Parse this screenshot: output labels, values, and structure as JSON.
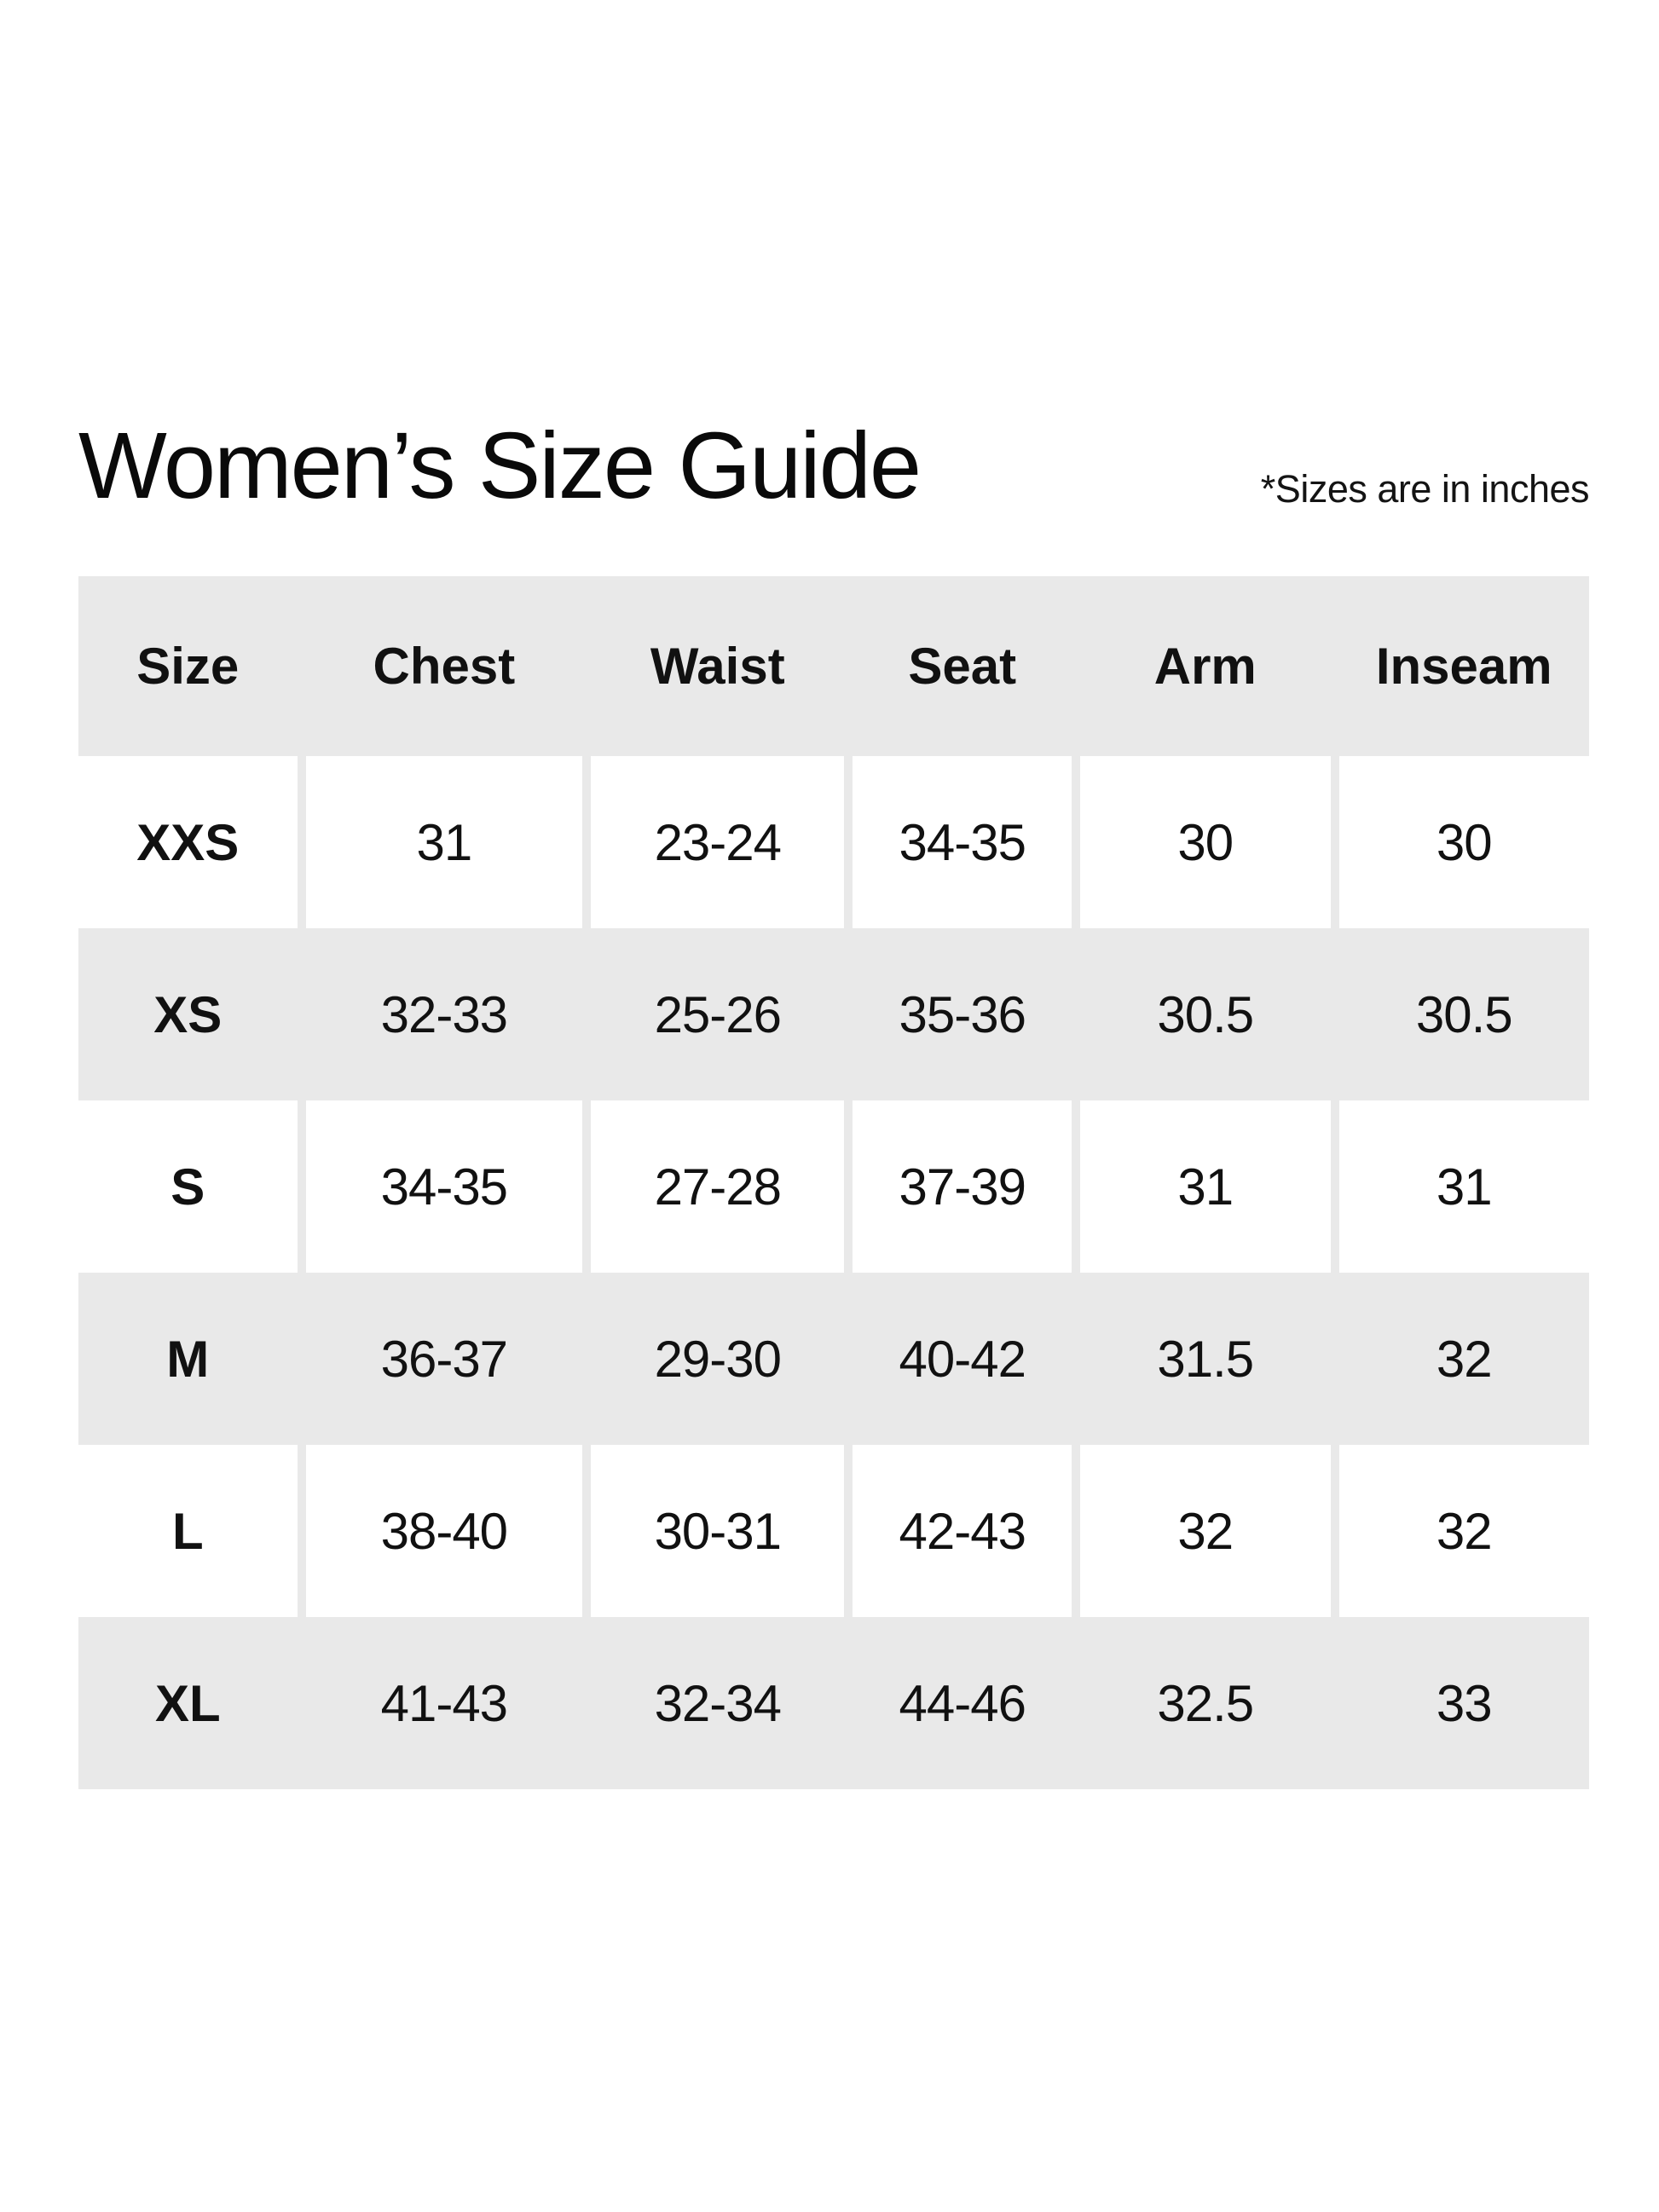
{
  "header": {
    "title": "Women’s Size Guide",
    "units_note": "*Sizes are in inches"
  },
  "table": {
    "columns": [
      "Size",
      "Chest",
      "Waist",
      "Seat",
      "Arm",
      "Inseam"
    ],
    "rows": [
      {
        "size": "XXS",
        "chest": "31",
        "waist": "23-24",
        "seat": "34-35",
        "arm": "30",
        "inseam": "30"
      },
      {
        "size": "XS",
        "chest": "32-33",
        "waist": "25-26",
        "seat": "35-36",
        "arm": "30.5",
        "inseam": "30.5"
      },
      {
        "size": "S",
        "chest": "34-35",
        "waist": "27-28",
        "seat": "37-39",
        "arm": "31",
        "inseam": "31"
      },
      {
        "size": "M",
        "chest": "36-37",
        "waist": "29-30",
        "seat": "40-42",
        "arm": "31.5",
        "inseam": "32"
      },
      {
        "size": "L",
        "chest": "38-40",
        "waist": "30-31",
        "seat": "42-43",
        "arm": "32",
        "inseam": "32"
      },
      {
        "size": "XL",
        "chest": "41-43",
        "waist": "32-34",
        "seat": "44-46",
        "arm": "32.5",
        "inseam": "33"
      }
    ]
  },
  "colors": {
    "page_background": "#ffffff",
    "band_gray": "#e9e9e9",
    "cell_white": "#ffffff",
    "text": "#111111"
  }
}
